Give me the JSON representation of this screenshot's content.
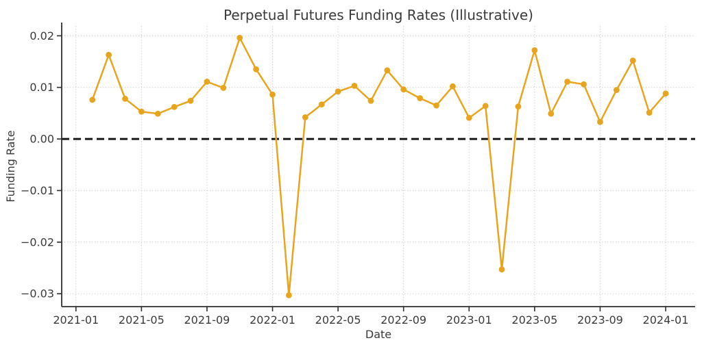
{
  "chart_data": {
    "type": "line",
    "title": "Perpetual Futures Funding Rates (Illustrative)",
    "xlabel": "Date",
    "ylabel": "Funding Rate",
    "legend": null,
    "grid": "dotted",
    "axes": {
      "xlim_months": [
        -0.87,
        37.8
      ],
      "ylim": [
        -0.0325,
        0.0219
      ],
      "yticks": [
        0.02,
        0.01,
        0.0,
        -0.01,
        -0.02,
        -0.03
      ],
      "xticks": [
        "2021-01",
        "2021-05",
        "2021-09",
        "2022-01",
        "2022-05",
        "2022-09",
        "2023-01",
        "2023-05",
        "2023-09",
        "2024-01"
      ],
      "epoch": "2021-01"
    },
    "zero_line": {
      "value": 0.0,
      "style": "dashed",
      "color": "#111111"
    },
    "series": [
      {
        "name": "funding-rate",
        "color": "#E8A41C",
        "marker": "circle",
        "x": [
          "2021-02",
          "2021-03",
          "2021-04",
          "2021-05",
          "2021-06",
          "2021-07",
          "2021-08",
          "2021-09",
          "2021-10",
          "2021-11",
          "2021-12",
          "2022-01",
          "2022-02",
          "2022-03",
          "2022-04",
          "2022-05",
          "2022-06",
          "2022-07",
          "2022-08",
          "2022-09",
          "2022-10",
          "2022-11",
          "2022-12",
          "2023-01",
          "2023-02",
          "2023-03",
          "2023-04",
          "2023-05",
          "2023-06",
          "2023-07",
          "2023-08",
          "2023-09",
          "2023-10",
          "2023-11",
          "2023-12",
          "2024-01"
        ],
        "y": [
          0.0076,
          0.0163,
          0.0078,
          0.0053,
          0.0049,
          0.0062,
          0.0074,
          0.0111,
          0.0099,
          0.0196,
          0.0135,
          0.0086,
          -0.0303,
          0.0042,
          0.0067,
          0.0092,
          0.0103,
          0.0074,
          0.0133,
          0.0096,
          0.0079,
          0.0065,
          0.0102,
          0.0041,
          0.0064,
          -0.0253,
          0.0063,
          0.0172,
          0.0049,
          0.0111,
          0.0106,
          0.0033,
          0.0095,
          0.0152,
          0.0051,
          0.0088
        ]
      }
    ],
    "colors": {
      "line": "#E8A41C",
      "grid": "#c9c9c9",
      "spine": "#2e2e2e",
      "text": "#3a3a3a",
      "zero_line": "#111111",
      "background": "#ffffff"
    }
  }
}
